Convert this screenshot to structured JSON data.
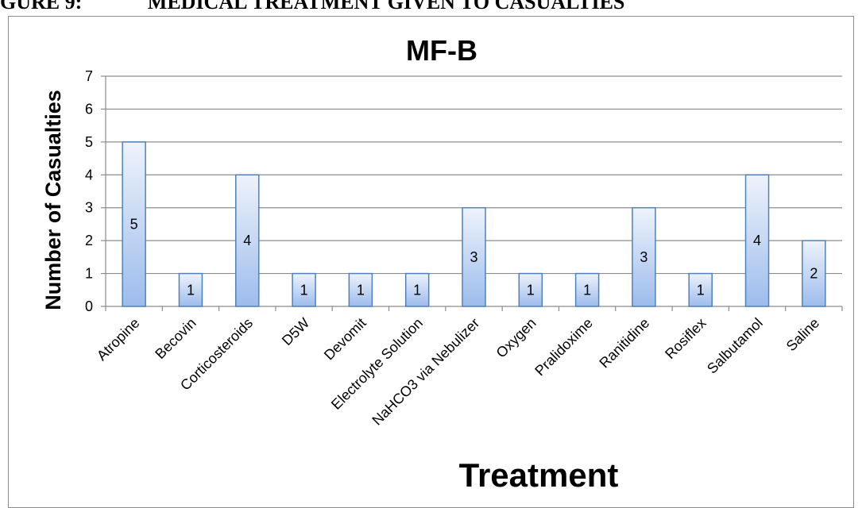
{
  "header": {
    "label": "GURE 9:",
    "title": "MEDICAL TREATMENT GIVEN TO CASUALTIES"
  },
  "colors": {
    "bar_top": "#eef3fb",
    "bar_bottom": "#9dbcec",
    "bar_stroke": "#4f81bd",
    "grid": "#8c8c8c"
  },
  "chart_data": {
    "type": "bar",
    "title": "MF-B",
    "xlabel": "Treatment",
    "ylabel": "Number of Casualties",
    "ylim": [
      0,
      7
    ],
    "yticks": [
      0,
      1,
      2,
      3,
      4,
      5,
      6,
      7
    ],
    "grid": true,
    "legend": "none",
    "categories": [
      "Atropine",
      "Becovin",
      "Corticosteroids",
      "D5W",
      "Devomit",
      "Electrolyte Solution",
      "NaHCO3 via Nebulizer",
      "Oxygen",
      "Pralidoxime",
      "Ranitidine",
      "Rosiflex",
      "Salbutamol",
      "Saline"
    ],
    "values": [
      5,
      1,
      4,
      1,
      1,
      1,
      3,
      1,
      1,
      3,
      1,
      4,
      2
    ],
    "data_labels": [
      "5",
      "1",
      "4",
      "1",
      "1",
      "1",
      "3",
      "1",
      "1",
      "3",
      "1",
      "4",
      "2"
    ]
  }
}
